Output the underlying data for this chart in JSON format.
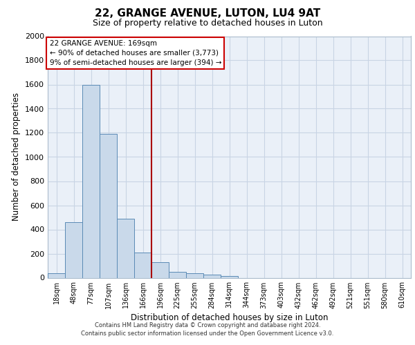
{
  "title_line1": "22, GRANGE AVENUE, LUTON, LU4 9AT",
  "title_line2": "Size of property relative to detached houses in Luton",
  "xlabel": "Distribution of detached houses by size in Luton",
  "ylabel": "Number of detached properties",
  "footer_line1": "Contains HM Land Registry data © Crown copyright and database right 2024.",
  "footer_line2": "Contains public sector information licensed under the Open Government Licence v3.0.",
  "bin_labels": [
    "18sqm",
    "48sqm",
    "77sqm",
    "107sqm",
    "136sqm",
    "166sqm",
    "196sqm",
    "225sqm",
    "255sqm",
    "284sqm",
    "314sqm",
    "344sqm",
    "373sqm",
    "403sqm",
    "432sqm",
    "462sqm",
    "492sqm",
    "521sqm",
    "551sqm",
    "580sqm",
    "610sqm"
  ],
  "bar_values": [
    35,
    460,
    1600,
    1190,
    490,
    210,
    130,
    50,
    40,
    25,
    15,
    0,
    0,
    0,
    0,
    0,
    0,
    0,
    0,
    0,
    0
  ],
  "bar_color": "#c9d9ea",
  "bar_edge_color": "#5a8ab5",
  "vline_color": "#aa0000",
  "vline_position": 5.5,
  "annotation_text": "22 GRANGE AVENUE: 169sqm\n← 90% of detached houses are smaller (3,773)\n9% of semi-detached houses are larger (394) →",
  "annotation_box_edgecolor": "#cc0000",
  "ylim": [
    0,
    2000
  ],
  "yticks": [
    0,
    200,
    400,
    600,
    800,
    1000,
    1200,
    1400,
    1600,
    1800,
    2000
  ],
  "ax_facecolor": "#eaf0f8",
  "grid_color": "#c8d4e4"
}
